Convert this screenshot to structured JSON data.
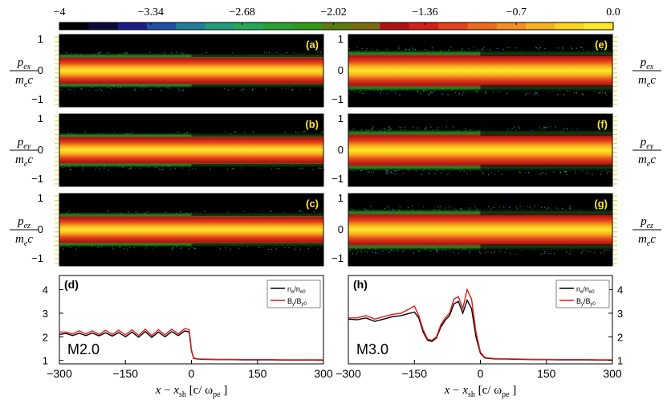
{
  "colorbar": {
    "ticks": [
      "−4",
      "−3.34",
      "−2.68",
      "−2.02",
      "−1.36",
      "−0.7",
      "0.0"
    ],
    "tick_values": [
      -4,
      -3.34,
      -2.68,
      -2.02,
      -1.36,
      -0.7,
      0.0
    ],
    "colors": [
      "#000000",
      "#0b0b3a",
      "#1c1c8a",
      "#1f4fa6",
      "#1f7f9a",
      "#1f9c7a",
      "#23a85a",
      "#27a12f",
      "#2f9a1a",
      "#5a7a12",
      "#7a6a10",
      "#b31212",
      "#d42018",
      "#e3421a",
      "#ee6a1c",
      "#f58e1e",
      "#f9b21f",
      "#fcd321",
      "#fde92a"
    ]
  },
  "momentum_panels": {
    "left_column": [
      {
        "id": "a",
        "label": "(a)",
        "ylabel_num": "p",
        "ylabel_sub": "ex",
        "ylabel_den": "m",
        "ylabel_den_sub": "e",
        "ylabel_den_c": "c"
      },
      {
        "id": "b",
        "label": "(b)",
        "ylabel_num": "p",
        "ylabel_sub": "ey",
        "ylabel_den": "m",
        "ylabel_den_sub": "e",
        "ylabel_den_c": "c"
      },
      {
        "id": "c",
        "label": "(c)",
        "ylabel_num": "p",
        "ylabel_sub": "ez",
        "ylabel_den": "m",
        "ylabel_den_sub": "e",
        "ylabel_den_c": "c"
      }
    ],
    "right_column": [
      {
        "id": "e",
        "label": "(e)",
        "ylabel_num": "p",
        "ylabel_sub": "ex",
        "ylabel_den": "m",
        "ylabel_den_sub": "e",
        "ylabel_den_c": "c"
      },
      {
        "id": "f",
        "label": "(f)",
        "ylabel_num": "p",
        "ylabel_sub": "ey",
        "ylabel_den": "m",
        "ylabel_den_sub": "e",
        "ylabel_den_c": "c"
      },
      {
        "id": "g",
        "label": "(g)",
        "ylabel_num": "p",
        "ylabel_sub": "ez",
        "ylabel_den": "m",
        "ylabel_den_sub": "e",
        "ylabel_den_c": "c"
      }
    ],
    "yticks": [
      "1",
      "0",
      "−1"
    ],
    "ytick_values": [
      1,
      0,
      -1
    ]
  },
  "chart_data": [
    {
      "type": "line",
      "panel": "(d)",
      "annotation": "M2.0",
      "x": [
        -300,
        -285,
        -270,
        -255,
        -240,
        -225,
        -210,
        -195,
        -180,
        -165,
        -150,
        -135,
        -120,
        -105,
        -90,
        -75,
        -60,
        -45,
        -30,
        -15,
        -5,
        0,
        5,
        15,
        30,
        60,
        90,
        120,
        150,
        180,
        210,
        240,
        270,
        300
      ],
      "series": [
        {
          "name": "n_e/n_e0",
          "legend_main": "n",
          "legend_sub1": "e",
          "legend_mid": "/n",
          "legend_sub2": "e0",
          "color": "#000000",
          "values": [
            2.1,
            2.14,
            2.05,
            2.15,
            2.05,
            2.16,
            2.04,
            2.17,
            2.03,
            2.18,
            2.0,
            2.2,
            1.98,
            2.22,
            1.97,
            2.2,
            2.0,
            2.22,
            2.05,
            2.25,
            2.2,
            1.4,
            1.08,
            1.05,
            1.04,
            1.03,
            1.03,
            1.02,
            1.02,
            1.02,
            1.01,
            1.01,
            1.01,
            1.0
          ]
        },
        {
          "name": "B_y/B_y0",
          "legend_main": "B",
          "legend_sub1": "y",
          "legend_mid": "/B",
          "legend_sub2": "y0",
          "color": "#e41a1c",
          "values": [
            2.2,
            2.2,
            2.12,
            2.25,
            2.12,
            2.25,
            2.1,
            2.27,
            2.1,
            2.28,
            2.08,
            2.3,
            2.06,
            2.32,
            2.05,
            2.3,
            2.08,
            2.32,
            2.12,
            2.35,
            2.3,
            1.45,
            1.1,
            1.06,
            1.05,
            1.04,
            1.04,
            1.03,
            1.03,
            1.03,
            1.02,
            1.02,
            1.02,
            1.02
          ]
        }
      ],
      "xlim": [
        -300,
        300
      ],
      "ylim": [
        0.85,
        4.6
      ],
      "xticks": [
        -300,
        -150,
        0,
        150,
        300
      ],
      "yticks": [
        1,
        2,
        3,
        4
      ],
      "xtick_labels": [
        "−300",
        "−150",
        "0",
        "150",
        "300"
      ],
      "ytick_labels": [
        "1",
        "2",
        "3",
        "4"
      ],
      "xlabel": "x − x_sh [c/ ω_pe]"
    },
    {
      "type": "line",
      "panel": "(h)",
      "annotation": "M3.0",
      "x": [
        -300,
        -280,
        -260,
        -240,
        -220,
        -200,
        -180,
        -160,
        -150,
        -140,
        -130,
        -120,
        -110,
        -100,
        -90,
        -80,
        -70,
        -60,
        -50,
        -40,
        -30,
        -20,
        -10,
        0,
        10,
        30,
        60,
        90,
        120,
        150,
        180,
        210,
        240,
        270,
        300
      ],
      "series": [
        {
          "name": "n_e/n_e0",
          "legend_main": "n",
          "legend_sub1": "e",
          "legend_mid": "/n",
          "legend_sub2": "e0",
          "color": "#000000",
          "values": [
            2.75,
            2.72,
            2.8,
            2.65,
            2.75,
            2.85,
            2.9,
            3.0,
            3.05,
            2.8,
            2.2,
            1.85,
            1.8,
            1.95,
            2.4,
            2.7,
            2.9,
            3.4,
            3.5,
            3.0,
            3.55,
            3.2,
            2.0,
            1.3,
            1.1,
            1.06,
            1.05,
            1.04,
            1.03,
            1.03,
            1.02,
            1.02,
            1.02,
            1.01,
            1.01
          ]
        },
        {
          "name": "B_y/B_y0",
          "legend_main": "B",
          "legend_sub1": "y",
          "legend_mid": "/B",
          "legend_sub2": "y0",
          "color": "#e41a1c",
          "values": [
            2.8,
            2.8,
            2.9,
            2.75,
            2.85,
            2.95,
            3.0,
            3.2,
            3.3,
            2.9,
            2.3,
            1.9,
            1.85,
            2.0,
            2.5,
            2.8,
            3.0,
            3.6,
            3.7,
            3.2,
            4.0,
            3.6,
            2.2,
            1.35,
            1.12,
            1.08,
            1.06,
            1.05,
            1.04,
            1.04,
            1.03,
            1.03,
            1.03,
            1.02,
            1.02
          ]
        }
      ],
      "xlim": [
        -300,
        300
      ],
      "ylim": [
        0.85,
        4.6
      ],
      "xticks": [
        -300,
        -150,
        0,
        150,
        300
      ],
      "yticks": [
        1,
        2,
        3,
        4
      ],
      "xtick_labels": [
        "−300",
        "−150",
        "0",
        "150",
        "300"
      ],
      "ytick_labels": [
        "1",
        "2",
        "3",
        "4"
      ],
      "xlabel": "x − x_sh [c/ ω_pe]"
    }
  ],
  "axis_labels": {
    "x_main": "x",
    "x_minus": "−",
    "x_sub_var": "x",
    "x_sub": "sh",
    "x_bracket_open": "[c/ ω",
    "x_bracket_sub": "pe",
    "x_bracket_close": "]"
  }
}
